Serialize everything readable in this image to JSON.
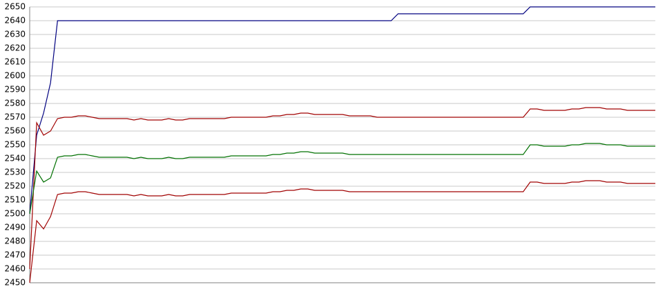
{
  "chart_data": {
    "type": "line",
    "categories": [
      null,
      null,
      null,
      null,
      null,
      null,
      null,
      null,
      null,
      null,
      null,
      null,
      null,
      null,
      null,
      null,
      null,
      null,
      null,
      null,
      null,
      null,
      null,
      null,
      null,
      null,
      null,
      null,
      null,
      null,
      null,
      null,
      null,
      null,
      null,
      null,
      null,
      null,
      null,
      null,
      null,
      null,
      null,
      null,
      null,
      null,
      null,
      null,
      null,
      null,
      null,
      null,
      null,
      null,
      null,
      null,
      null,
      null,
      null,
      null,
      null,
      null,
      null,
      null,
      null,
      null,
      null,
      null,
      null,
      null,
      null,
      null,
      null,
      null,
      null,
      null,
      null,
      null,
      null,
      null,
      null,
      null,
      null,
      null,
      null,
      null,
      null,
      null,
      null,
      null,
      null
    ],
    "ylim": [
      2450,
      2650
    ],
    "yticks": [
      2450,
      2460,
      2470,
      2480,
      2490,
      2500,
      2510,
      2520,
      2530,
      2540,
      2550,
      2560,
      2570,
      2580,
      2590,
      2600,
      2610,
      2620,
      2630,
      2640,
      2650
    ],
    "grid": true,
    "series": [
      {
        "color": "#000080",
        "values": [
          2500,
          2557,
          2573,
          2595,
          2640,
          2640,
          2640,
          2640,
          2640,
          2640,
          2640,
          2640,
          2640,
          2640,
          2640,
          2640,
          2640,
          2640,
          2640,
          2640,
          2640,
          2640,
          2640,
          2640,
          2640,
          2640,
          2640,
          2640,
          2640,
          2640,
          2640,
          2640,
          2640,
          2640,
          2640,
          2640,
          2640,
          2640,
          2640,
          2640,
          2640,
          2640,
          2640,
          2640,
          2640,
          2640,
          2640,
          2640,
          2640,
          2640,
          2640,
          2640,
          2640,
          2645,
          2645,
          2645,
          2645,
          2645,
          2645,
          2645,
          2645,
          2645,
          2645,
          2645,
          2645,
          2645,
          2645,
          2645,
          2645,
          2645,
          2645,
          2645,
          2650,
          2650,
          2650,
          2650,
          2650,
          2650,
          2650,
          2650,
          2650,
          2650,
          2650,
          2650,
          2650,
          2650,
          2650,
          2650,
          2650,
          2650,
          2650
        ]
      },
      {
        "color": "#a00000",
        "values": [
          2460,
          2566,
          2557,
          2560,
          2569,
          2570,
          2570,
          2571,
          2571,
          2570,
          2569,
          2569,
          2569,
          2569,
          2569,
          2568,
          2569,
          2568,
          2568,
          2568,
          2569,
          2568,
          2568,
          2569,
          2569,
          2569,
          2569,
          2569,
          2569,
          2570,
          2570,
          2570,
          2570,
          2570,
          2570,
          2571,
          2571,
          2572,
          2572,
          2573,
          2573,
          2572,
          2572,
          2572,
          2572,
          2572,
          2571,
          2571,
          2571,
          2571,
          2570,
          2570,
          2570,
          2570,
          2570,
          2570,
          2570,
          2570,
          2570,
          2570,
          2570,
          2570,
          2570,
          2570,
          2570,
          2570,
          2570,
          2570,
          2570,
          2570,
          2570,
          2570,
          2576,
          2576,
          2575,
          2575,
          2575,
          2575,
          2576,
          2576,
          2577,
          2577,
          2577,
          2576,
          2576,
          2576,
          2575,
          2575,
          2575,
          2575,
          2575
        ]
      },
      {
        "color": "#007000",
        "values": [
          2500,
          2531,
          2523,
          2526,
          2541,
          2542,
          2542,
          2543,
          2543,
          2542,
          2541,
          2541,
          2541,
          2541,
          2541,
          2540,
          2541,
          2540,
          2540,
          2540,
          2541,
          2540,
          2540,
          2541,
          2541,
          2541,
          2541,
          2541,
          2541,
          2542,
          2542,
          2542,
          2542,
          2542,
          2542,
          2543,
          2543,
          2544,
          2544,
          2545,
          2545,
          2544,
          2544,
          2544,
          2544,
          2544,
          2543,
          2543,
          2543,
          2543,
          2543,
          2543,
          2543,
          2543,
          2543,
          2543,
          2543,
          2543,
          2543,
          2543,
          2543,
          2543,
          2543,
          2543,
          2543,
          2543,
          2543,
          2543,
          2543,
          2543,
          2543,
          2543,
          2550,
          2550,
          2549,
          2549,
          2549,
          2549,
          2550,
          2550,
          2551,
          2551,
          2551,
          2550,
          2550,
          2550,
          2549,
          2549,
          2549,
          2549,
          2549
        ]
      },
      {
        "color": "#a00000",
        "values": [
          2450,
          2495,
          2489,
          2498,
          2514,
          2515,
          2515,
          2516,
          2516,
          2515,
          2514,
          2514,
          2514,
          2514,
          2514,
          2513,
          2514,
          2513,
          2513,
          2513,
          2514,
          2513,
          2513,
          2514,
          2514,
          2514,
          2514,
          2514,
          2514,
          2515,
          2515,
          2515,
          2515,
          2515,
          2515,
          2516,
          2516,
          2517,
          2517,
          2518,
          2518,
          2517,
          2517,
          2517,
          2517,
          2517,
          2516,
          2516,
          2516,
          2516,
          2516,
          2516,
          2516,
          2516,
          2516,
          2516,
          2516,
          2516,
          2516,
          2516,
          2516,
          2516,
          2516,
          2516,
          2516,
          2516,
          2516,
          2516,
          2516,
          2516,
          2516,
          2516,
          2523,
          2523,
          2522,
          2522,
          2522,
          2522,
          2523,
          2523,
          2524,
          2524,
          2524,
          2523,
          2523,
          2523,
          2522,
          2522,
          2522,
          2522,
          2522
        ]
      }
    ]
  }
}
